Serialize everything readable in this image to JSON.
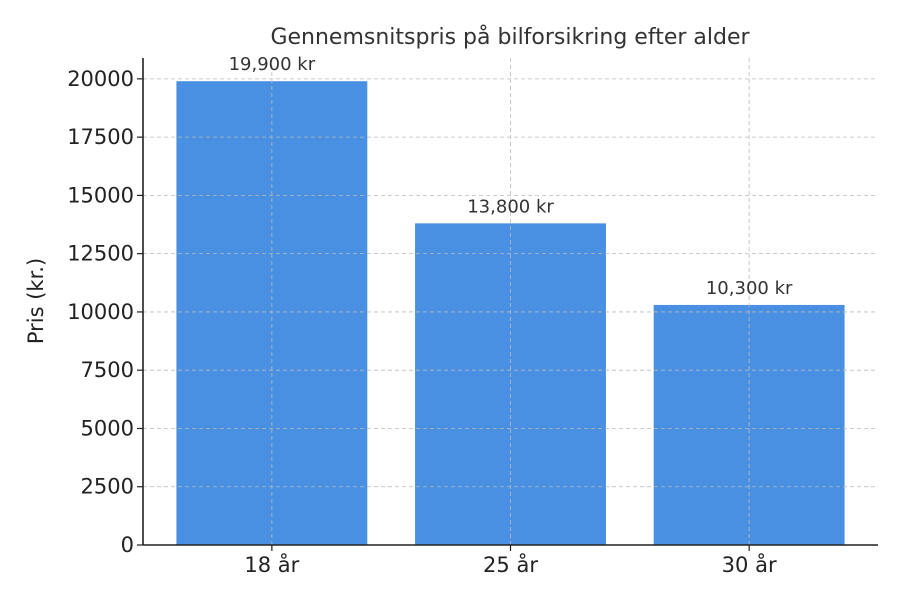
{
  "chart_data": {
    "type": "bar",
    "title": "Gennemsnitspris på bilforsikring efter alder",
    "xlabel": "",
    "ylabel": "Pris (kr.)",
    "categories": [
      "18 år",
      "25 år",
      "30 år"
    ],
    "values": [
      19900,
      13800,
      10300
    ],
    "data_labels": [
      "19,900 kr",
      "13,800 kr",
      "10,300 kr"
    ],
    "ylim": [
      0,
      20895
    ],
    "yticks": [
      0,
      2500,
      5000,
      7500,
      10000,
      12500,
      15000,
      17500,
      20000
    ],
    "grid": true,
    "bar_color": "#4a90e2"
  }
}
